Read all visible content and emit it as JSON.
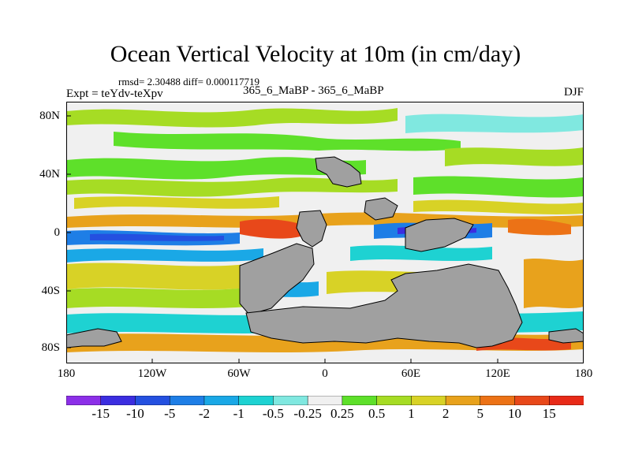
{
  "title": "Ocean Vertical Velocity at 10m (in cm/day)",
  "stats": "rmsd= 2.30488 diff= 0.000117719",
  "expt": "Expt = teYdv-teXpv",
  "case": "365_6_MaBP - 365_6_MaBP",
  "season": "DJF",
  "axes": {
    "y_ticks": [
      "80N",
      "40N",
      "0",
      "40S",
      "80S"
    ],
    "x_ticks": [
      "180",
      "120W",
      "60W",
      "0",
      "60E",
      "120E",
      "180"
    ]
  },
  "colorbar": {
    "labels": [
      "-15",
      "-10",
      "-5",
      "-2",
      "-1",
      "-0.5",
      "-0.25",
      "0.25",
      "0.5",
      "1",
      "2",
      "5",
      "10",
      "15"
    ],
    "colors": [
      "#8c2fe8",
      "#3b2de0",
      "#2450e0",
      "#1e7ee6",
      "#1aa8e6",
      "#1ed2d2",
      "#80e8e0",
      "#f0f0f0",
      "#5ee02a",
      "#a6dc24",
      "#d8d226",
      "#e8a21c",
      "#ec7216",
      "#e8481a",
      "#e82a18"
    ]
  },
  "colors": {
    "land": "#a0a0a0",
    "frame": "#000000"
  }
}
